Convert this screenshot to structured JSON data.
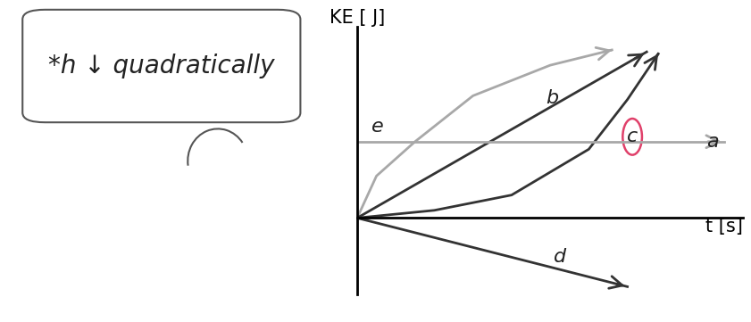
{
  "chart_data": {
    "type": "line",
    "x_label": "t [s]",
    "y_label": "KE [ J]",
    "annotations": [
      "*h ↓ quadratically"
    ],
    "xlim": [
      0,
      10
    ],
    "ylim": [
      -2,
      5
    ],
    "xticks": [],
    "yticks": [],
    "tick_labels": false,
    "series": [
      {
        "name": "e",
        "color": "#a8a8a8",
        "x": [
          0,
          0.5,
          1.5,
          3,
          5,
          6.6
        ],
        "values": [
          0,
          1.1,
          2.0,
          3.2,
          4.0,
          4.4
        ]
      },
      {
        "name": "b",
        "color": "#333333",
        "x": [
          0,
          7.5
        ],
        "values": [
          0,
          4.35
        ]
      },
      {
        "name": "c",
        "color": "#333333",
        "x": [
          0,
          2,
          4,
          6,
          7,
          7.8
        ],
        "values": [
          0,
          0.2,
          0.6,
          1.8,
          3.1,
          4.3
        ]
      },
      {
        "name": "a",
        "color": "#a8a8a8",
        "x": [
          0,
          9.5
        ],
        "values": [
          2.0,
          2.0
        ]
      },
      {
        "name": "d",
        "color": "#333333",
        "x": [
          0,
          7
        ],
        "values": [
          0,
          -1.8
        ]
      }
    ]
  }
}
